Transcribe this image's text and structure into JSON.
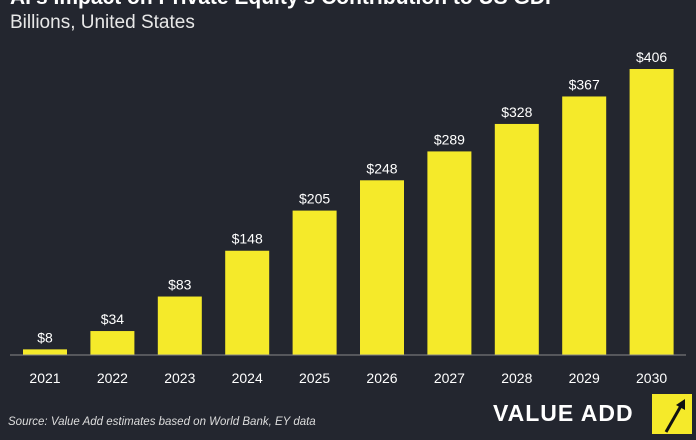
{
  "chart_data": {
    "type": "bar",
    "title": "AI's Impact on Private Equity's Contribution to US GDP",
    "subtitle": "Billions, United States",
    "categories": [
      "2021",
      "2022",
      "2023",
      "2024",
      "2025",
      "2026",
      "2027",
      "2028",
      "2029",
      "2030"
    ],
    "values": [
      8,
      34,
      83,
      148,
      205,
      248,
      289,
      328,
      367,
      406
    ],
    "data_labels": [
      "$8",
      "$34",
      "$83",
      "$148",
      "$205",
      "$248",
      "$289",
      "$328",
      "$367",
      "$406"
    ],
    "ylim": [
      0,
      406
    ],
    "grid": false,
    "bar_color": "#f5ea2a",
    "background": "#23262f"
  },
  "source": "Source: Value Add estimates based on World Bank, EY data",
  "brand": {
    "name": "VALUE ADD",
    "icon": "arrow-up-right-icon"
  }
}
